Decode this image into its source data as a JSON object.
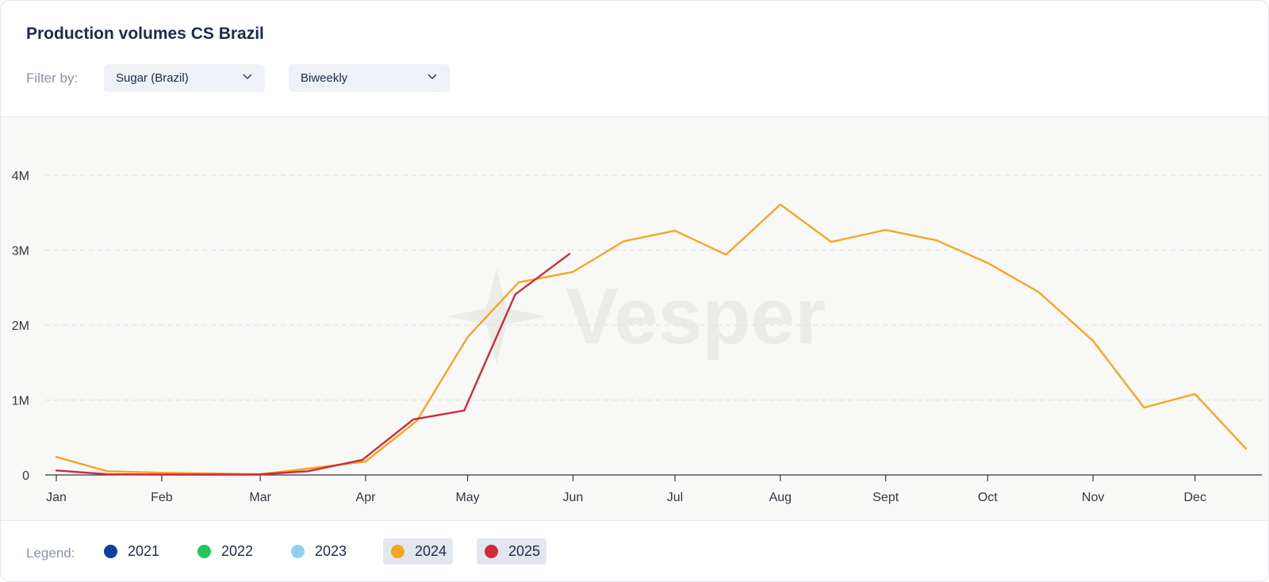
{
  "header": {
    "title": "Production volumes CS Brazil",
    "filter_label": "Filter by:",
    "filter_commodity": "Sugar (Brazil)",
    "filter_frequency": "Biweekly"
  },
  "watermark": "Vesper",
  "legend": {
    "label": "Legend:",
    "items": [
      {
        "name": "2021",
        "color": "#0d3f9f",
        "active": false
      },
      {
        "name": "2022",
        "color": "#22c55e",
        "active": false
      },
      {
        "name": "2023",
        "color": "#8fd0ef",
        "active": false
      },
      {
        "name": "2024",
        "color": "#f5a623",
        "active": true
      },
      {
        "name": "2025",
        "color": "#cf2a3a",
        "active": true
      }
    ]
  },
  "chart_data": {
    "type": "line",
    "y_ticks": [
      0,
      1000000,
      2000000,
      3000000,
      4000000
    ],
    "y_tick_labels": [
      "0",
      "1M",
      "2M",
      "3M",
      "4M"
    ],
    "ylim": [
      0,
      4000000
    ],
    "month_labels": [
      "Jan",
      "Feb",
      "Mar",
      "Apr",
      "May",
      "Jun",
      "Jul",
      "Aug",
      "Sept",
      "Oct",
      "Nov",
      "Dec"
    ],
    "grid": true,
    "legend_position": "bottom",
    "series": [
      {
        "name": "2024",
        "color": "#f5a623",
        "x": [
          "2024-01-01",
          "2024-01-16",
          "2024-02-01",
          "2024-02-16",
          "2024-03-01",
          "2024-03-16",
          "2024-04-01",
          "2024-04-16",
          "2024-05-01",
          "2024-05-16",
          "2024-06-01",
          "2024-06-16",
          "2024-07-01",
          "2024-07-16",
          "2024-08-01",
          "2024-08-16",
          "2024-09-01",
          "2024-09-16",
          "2024-10-01",
          "2024-10-16",
          "2024-11-01",
          "2024-11-16",
          "2024-12-01",
          "2024-12-16"
        ],
        "values": [
          240000,
          50000,
          30000,
          20000,
          10000,
          90000,
          180000,
          720000,
          1840000,
          2570000,
          2710000,
          3120000,
          3260000,
          2940000,
          3610000,
          3110000,
          3270000,
          3130000,
          2830000,
          2440000,
          1790000,
          900000,
          1080000,
          350000
        ]
      },
      {
        "name": "2025",
        "color": "#cf2a3a",
        "x": [
          "2025-01-01",
          "2025-01-16",
          "2025-02-01",
          "2025-02-16",
          "2025-03-01",
          "2025-03-16",
          "2025-04-01",
          "2025-04-16",
          "2025-05-01",
          "2025-05-16",
          "2025-06-01"
        ],
        "values": [
          60000,
          10000,
          5000,
          5000,
          5000,
          50000,
          200000,
          740000,
          860000,
          2410000,
          2950000
        ]
      }
    ]
  }
}
